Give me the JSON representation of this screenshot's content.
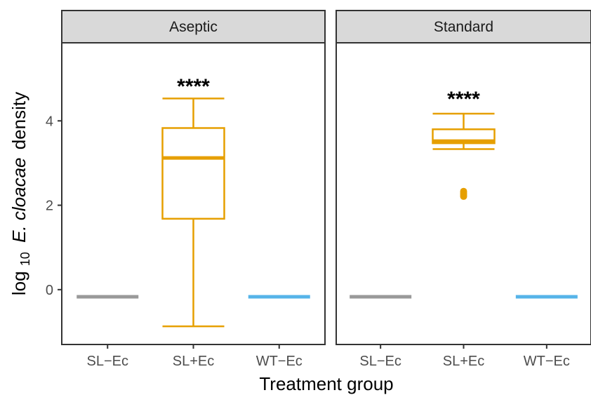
{
  "chart_data": {
    "type": "box",
    "xlabel": "Treatment group",
    "ylabel": {
      "prefix": "log",
      "subscript": "10",
      "italic": "E. cloacae",
      "suffix": "density"
    },
    "ylim": [
      -1.3,
      5.85
    ],
    "yticks": [
      "0",
      "2",
      "4"
    ],
    "categories": [
      "SL−Ec",
      "SL+Ec",
      "WT−Ec"
    ],
    "colors": {
      "SL−Ec": "#999999",
      "SL+Ec": "#E69F00",
      "WT−Ec": "#56B4E9"
    },
    "panels": [
      {
        "title": "Aseptic",
        "significance": {
          "category": "SL+Ec",
          "label": "****",
          "y": 4.85
        },
        "boxes": [
          {
            "category": "SL−Ec",
            "min": -0.17,
            "q1": -0.17,
            "median": -0.17,
            "q3": -0.17,
            "max": -0.17,
            "outliers": []
          },
          {
            "category": "SL+Ec",
            "min": -0.87,
            "q1": 1.68,
            "median": 3.12,
            "q3": 3.83,
            "max": 4.53,
            "outliers": []
          },
          {
            "category": "WT−Ec",
            "min": -0.17,
            "q1": -0.17,
            "median": -0.17,
            "q3": -0.17,
            "max": -0.17,
            "outliers": []
          }
        ]
      },
      {
        "title": "Standard",
        "significance": {
          "category": "SL+Ec",
          "label": "****",
          "y": 4.55
        },
        "boxes": [
          {
            "category": "SL−Ec",
            "min": -0.17,
            "q1": -0.17,
            "median": -0.17,
            "q3": -0.17,
            "max": -0.17,
            "outliers": []
          },
          {
            "category": "SL+Ec",
            "min": 3.33,
            "q1": 3.47,
            "median": 3.52,
            "q3": 3.8,
            "max": 4.17,
            "outliers": [
              2.21,
              2.25,
              2.29,
              2.33
            ]
          },
          {
            "category": "WT−Ec",
            "min": -0.17,
            "q1": -0.17,
            "median": -0.17,
            "q3": -0.17,
            "max": -0.17,
            "outliers": []
          }
        ]
      }
    ],
    "grid": false,
    "legend": "none"
  }
}
